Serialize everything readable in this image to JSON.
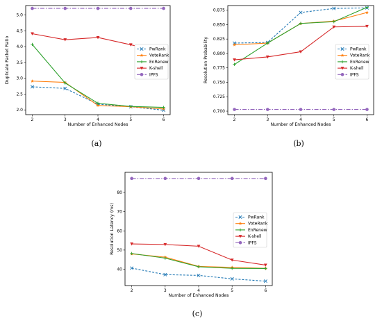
{
  "chart_data": [
    {
      "type": "line",
      "panel_label": "(a)",
      "xlabel": "Number of Enhanced Nodes",
      "ylabel": "Duplicate Packet Ratio",
      "x": [
        2,
        3,
        4,
        5,
        6
      ],
      "xticks": [
        "2",
        "3",
        "4",
        "5",
        "6"
      ],
      "ylim": [
        1.85,
        5.3
      ],
      "yticks": [
        2.0,
        2.5,
        3.0,
        3.5,
        4.0,
        4.5,
        5.0
      ],
      "ytick_labels": [
        "2.0",
        "2.5",
        "3.0",
        "3.5",
        "4.0",
        "4.5",
        "5.0"
      ],
      "legend_position": "right",
      "series": [
        {
          "name": "PwRank",
          "values": [
            2.73,
            2.68,
            2.18,
            2.1,
            1.99
          ]
        },
        {
          "name": "VoteRank",
          "values": [
            2.91,
            2.87,
            2.14,
            2.1,
            2.03
          ]
        },
        {
          "name": "EnRenew",
          "values": [
            4.07,
            2.85,
            2.21,
            2.11,
            2.08
          ]
        },
        {
          "name": "K-shell",
          "values": [
            4.41,
            4.22,
            4.29,
            4.06,
            3.84
          ]
        },
        {
          "name": "IPFS",
          "values": [
            5.21,
            5.21,
            5.21,
            5.21,
            5.21
          ]
        }
      ]
    },
    {
      "type": "line",
      "panel_label": "(b)",
      "xlabel": "Number of Enhanced Nodes",
      "ylabel": "Resolution Probability",
      "x": [
        2,
        3,
        4,
        5,
        6
      ],
      "xticks": [
        "2",
        "3",
        "4",
        "5",
        "6"
      ],
      "ylim": [
        0.694,
        0.883
      ],
      "yticks": [
        0.7,
        0.725,
        0.75,
        0.775,
        0.8,
        0.825,
        0.85,
        0.875
      ],
      "ytick_labels": [
        "0.700",
        "0.725",
        "0.750",
        "0.775",
        "0.800",
        "0.825",
        "0.850",
        "0.875"
      ],
      "legend_position": "right",
      "series": [
        {
          "name": "PwRank",
          "values": [
            0.818,
            0.819,
            0.871,
            0.878,
            0.879
          ]
        },
        {
          "name": "VoteRank",
          "values": [
            0.815,
            0.818,
            0.852,
            0.856,
            0.871
          ]
        },
        {
          "name": "EnRenew",
          "values": [
            0.781,
            0.818,
            0.852,
            0.855,
            0.88
          ]
        },
        {
          "name": "K-shell",
          "values": [
            0.789,
            0.794,
            0.803,
            0.846,
            0.847
          ]
        },
        {
          "name": "IPFS",
          "values": [
            0.703,
            0.703,
            0.703,
            0.703,
            0.703
          ]
        }
      ]
    },
    {
      "type": "line",
      "panel_label": "(c)",
      "xlabel": "Number of Enhanced Nodes",
      "ylabel": "Resolution Latency (ms)",
      "x": [
        2,
        3,
        4,
        5,
        6
      ],
      "xticks": [
        "2",
        "3",
        "4",
        "5",
        "6"
      ],
      "ylim": [
        31.5,
        90.5
      ],
      "yticks": [
        40,
        50,
        60,
        70,
        80
      ],
      "ytick_labels": [
        "40",
        "50",
        "60",
        "70",
        "80"
      ],
      "legend_position": "right",
      "series": [
        {
          "name": "PwRank",
          "values": [
            40.6,
            37.2,
            36.8,
            35.0,
            33.8
          ]
        },
        {
          "name": "VoteRank",
          "values": [
            48.0,
            46.3,
            41.5,
            41.0,
            40.5
          ]
        },
        {
          "name": "EnRenew",
          "values": [
            48.2,
            45.8,
            41.3,
            40.5,
            40.4
          ]
        },
        {
          "name": "K-shell",
          "values": [
            53.2,
            52.9,
            52.0,
            44.8,
            42.2
          ]
        },
        {
          "name": "IPFS",
          "values": [
            87.3,
            87.3,
            87.3,
            87.3,
            87.3
          ]
        }
      ]
    }
  ],
  "series_styles": [
    {
      "color": "#1f77b4",
      "dash": "3,2",
      "marker": "x"
    },
    {
      "color": "#ff7f0e",
      "dash": "",
      "marker": "star"
    },
    {
      "color": "#2ca02c",
      "dash": "",
      "marker": "plus"
    },
    {
      "color": "#d62728",
      "dash": "",
      "marker": "triangle-down"
    },
    {
      "color": "#9467bd",
      "dash": "6,2,1.5,2",
      "marker": "circle"
    }
  ]
}
